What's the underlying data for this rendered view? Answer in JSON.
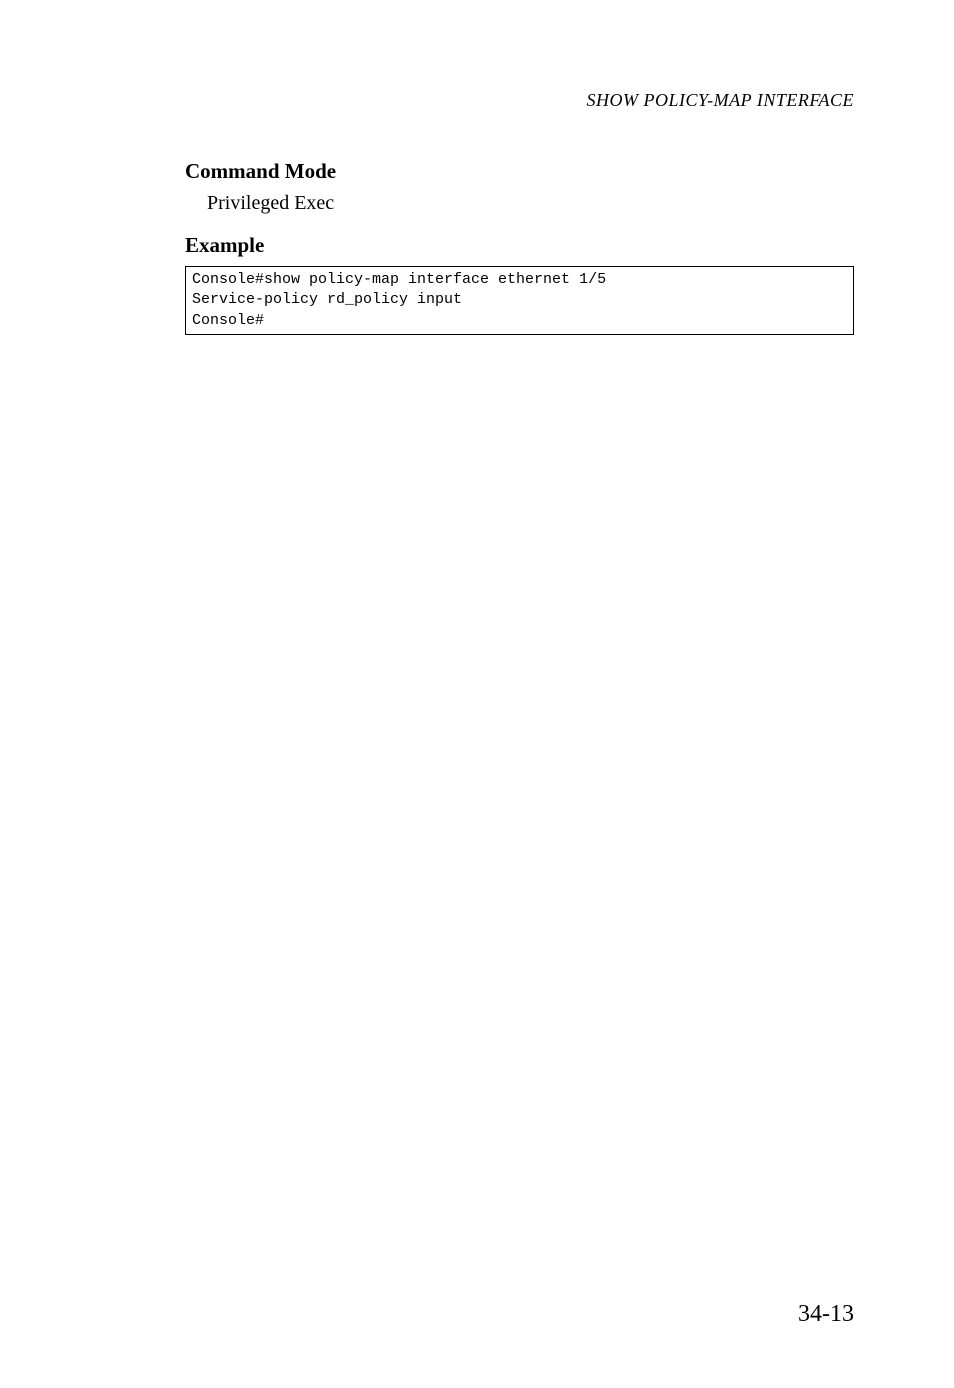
{
  "header": {
    "text": "SHOW POLICY-MAP INTERFACE"
  },
  "sections": {
    "command_mode": {
      "heading": "Command Mode",
      "text": "Privileged Exec"
    },
    "example": {
      "heading": "Example",
      "code": "Console#show policy-map interface ethernet 1/5\nService-policy rd_policy input\nConsole#"
    }
  },
  "page_number": "34-13"
}
